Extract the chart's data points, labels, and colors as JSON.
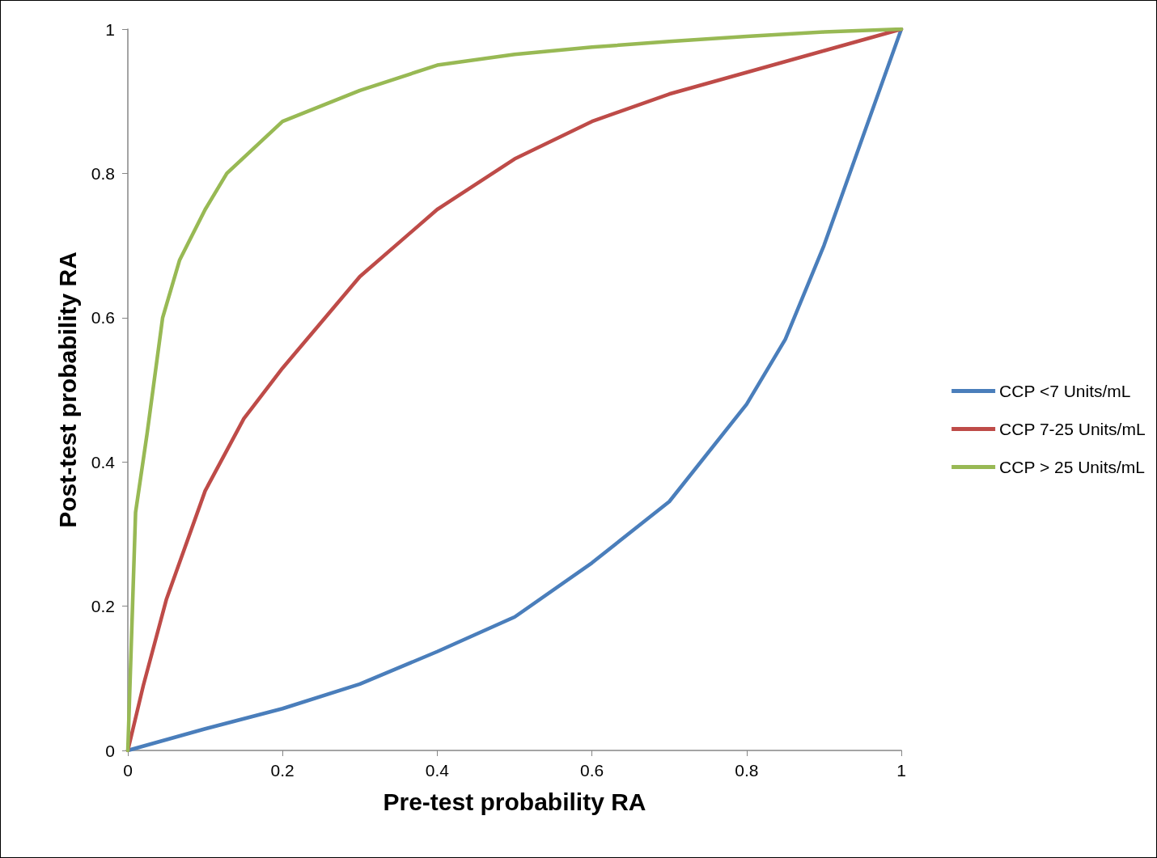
{
  "chart_data": {
    "type": "line",
    "xlabel": "Pre-test probability RA",
    "ylabel": "Post-test probability RA",
    "xlim": [
      0,
      1
    ],
    "xticks": [
      0,
      0.2,
      0.4,
      0.6,
      0.8,
      1
    ],
    "ylim": [
      0,
      1
    ],
    "yticks": [
      0,
      0.2,
      0.4,
      0.6,
      0.8,
      1
    ],
    "grid": false,
    "legend": "right",
    "marker": "none",
    "line_style": "solid",
    "series": [
      {
        "name": "CCP <7 Units/mL",
        "color": "#4a7ebb",
        "x": [
          0,
          0.1,
          0.2,
          0.3,
          0.4,
          0.5,
          0.6,
          0.7,
          0.8,
          0.85,
          0.9,
          0.95,
          1
        ],
        "values": [
          0,
          0.03,
          0.058,
          0.092,
          0.137,
          0.185,
          0.26,
          0.345,
          0.48,
          0.57,
          0.7,
          0.85,
          1
        ]
      },
      {
        "name": "CCP 7-25 Units/mL",
        "color": "#be4b48",
        "x": [
          0,
          0.02,
          0.05,
          0.1,
          0.15,
          0.2,
          0.3,
          0.4,
          0.5,
          0.6,
          0.7,
          0.8,
          0.9,
          1
        ],
        "values": [
          0,
          0.09,
          0.21,
          0.36,
          0.46,
          0.53,
          0.657,
          0.75,
          0.82,
          0.872,
          0.91,
          0.94,
          0.97,
          1
        ]
      },
      {
        "name": "CCP > 25 Units/mL",
        "color": "#98b954",
        "x": [
          0,
          0.01,
          0.025,
          0.045,
          0.067,
          0.1,
          0.128,
          0.2,
          0.3,
          0.4,
          0.5,
          0.6,
          0.7,
          0.8,
          0.9,
          1
        ],
        "values": [
          0,
          0.33,
          0.44,
          0.6,
          0.68,
          0.75,
          0.8,
          0.872,
          0.915,
          0.95,
          0.965,
          0.975,
          0.983,
          0.99,
          0.996,
          1
        ]
      }
    ]
  }
}
